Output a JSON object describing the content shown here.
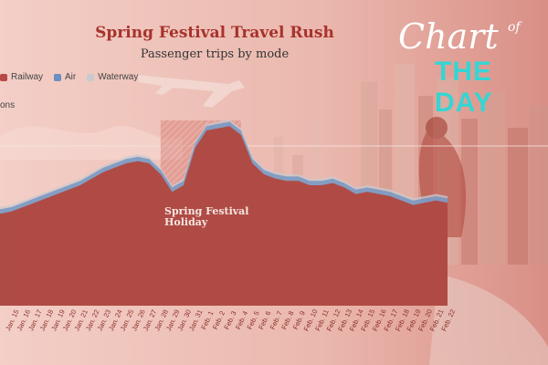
{
  "header": {
    "title": "Spring Festival Travel Rush",
    "subtitle": "Passenger trips by mode",
    "unit_label": "ons"
  },
  "logo": {
    "line1": "Chart",
    "of": "of",
    "line2": "THE DAY"
  },
  "colors": {
    "railway": "#b54a47",
    "air": "#6a8fc0",
    "waterway": "#c9c9cf",
    "area_fill": "#b3443a",
    "highlight": "#d4736a"
  },
  "chart_data": {
    "type": "area",
    "title": "Spring Festival Travel Rush",
    "subtitle": "Passenger trips by mode",
    "legend": [
      "Railway",
      "Air",
      "Waterway"
    ],
    "legend_placement": "top-left",
    "grid": false,
    "x": [
      "Jan. 14",
      "Jan. 15",
      "Jan. 16",
      "Jan. 17",
      "Jan. 18",
      "Jan. 19",
      "Jan. 20",
      "Jan. 21",
      "Jan. 22",
      "Jan. 23",
      "Jan. 24",
      "Jan. 25",
      "Jan. 26",
      "Jan. 27",
      "Jan. 28",
      "Jan. 29",
      "Jan. 30",
      "Jan. 31",
      "Feb. 1",
      "Feb. 2",
      "Feb. 3",
      "Feb. 4",
      "Feb. 5",
      "Feb. 6",
      "Feb. 7",
      "Feb. 8",
      "Feb. 9",
      "Feb. 10",
      "Feb. 11",
      "Feb. 12",
      "Feb. 13",
      "Feb. 14",
      "Feb. 15",
      "Feb. 16",
      "Feb. 17",
      "Feb. 18",
      "Feb. 19",
      "Feb. 20",
      "Feb. 21",
      "Feb. 22"
    ],
    "tick_labels": [
      "Jan. 15",
      "Jan. 16",
      "Jan. 17",
      "Jan. 18",
      "Jan. 19",
      "Jan. 20",
      "Jan. 21",
      "Jan. 22",
      "Jan. 23",
      "Jan. 24",
      "Jan. 25",
      "Jan. 26",
      "Jan. 27",
      "Jan. 28",
      "Jan. 29",
      "Jan. 30",
      "Jan. 31",
      "Feb. 1",
      "Feb. 2",
      "Feb. 3",
      "Feb. 4",
      "Feb. 5",
      "Feb. 6",
      "Feb. 7",
      "Feb. 8",
      "Feb. 9",
      "Feb. 10",
      "Feb. 11",
      "Feb. 12",
      "Feb. 13",
      "Feb. 14",
      "Feb. 15",
      "Feb. 16",
      "Feb. 17",
      "Feb. 18",
      "Feb. 19",
      "Feb. 20",
      "Feb. 21",
      "Feb. 22"
    ],
    "ylim": [
      0,
      100
    ],
    "series": [
      {
        "name": "Railway",
        "values": [
          42,
          43,
          45,
          47,
          49,
          51,
          53,
          55,
          58,
          61,
          63,
          65,
          66,
          65,
          60,
          52,
          55,
          72,
          80,
          81,
          82,
          78,
          65,
          60,
          58,
          57,
          57,
          55,
          55,
          56,
          54,
          51,
          52,
          51,
          50,
          48,
          46,
          47,
          48,
          47
        ]
      },
      {
        "name": "Air",
        "values": [
          44,
          45,
          47,
          49,
          51,
          53,
          55,
          57,
          60,
          63,
          65,
          67,
          68,
          67,
          62,
          54,
          57,
          74,
          82,
          83,
          84,
          80,
          67,
          62,
          60,
          59,
          59,
          57,
          57,
          58,
          56,
          53,
          54,
          53,
          52,
          50,
          48,
          49,
          50,
          49
        ]
      },
      {
        "name": "Waterway",
        "values": [
          45,
          46,
          48,
          50,
          52,
          54,
          56,
          58,
          61,
          64,
          66,
          68,
          69,
          68,
          63,
          55,
          58,
          75,
          83,
          84,
          85,
          81,
          68,
          63,
          61,
          60,
          60,
          58,
          58,
          59,
          57,
          54,
          55,
          54,
          53,
          51,
          49,
          50,
          51,
          50
        ]
      }
    ],
    "highlight": {
      "from": "Jan. 28",
      "to": "Feb. 4",
      "label": "Spring Festival Holiday"
    },
    "annotations": [
      "Spring Festival Holiday"
    ]
  }
}
